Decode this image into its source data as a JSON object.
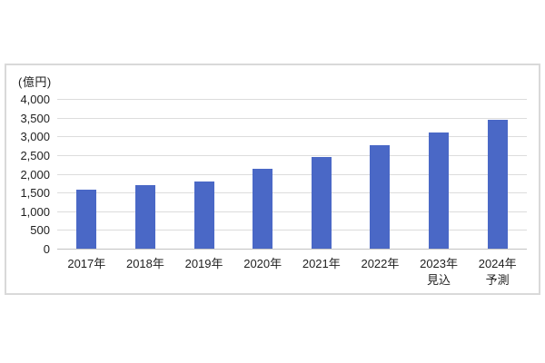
{
  "page": {
    "background_color": "#ffffff"
  },
  "chart_data": {
    "type": "bar",
    "title": "",
    "unit_label": "(億円)",
    "categories": [
      "2017年",
      "2018年",
      "2019年",
      "2020年",
      "2021年",
      "2022年",
      "2023年",
      "2024年"
    ],
    "category_sublabels": [
      "",
      "",
      "",
      "",
      "",
      "",
      "見込",
      "予測"
    ],
    "values": [
      1580,
      1700,
      1800,
      2130,
      2440,
      2760,
      3110,
      3450
    ],
    "xlabel": "",
    "ylabel": "(億円)",
    "ylim": [
      0,
      4000
    ],
    "y_tick_interval": 500,
    "y_tick_labels": [
      "0",
      "500",
      "1,000",
      "1,500",
      "2,000",
      "2,500",
      "3,000",
      "3,500",
      "4,000"
    ],
    "grid": true,
    "legend_position": "none",
    "bar_color": "#4a68c6",
    "gridline_color": "#dcdcdc",
    "axis_line_color": "#c2c2c2",
    "text_color": "#1f1f1f",
    "chart_border_color": "#d9d9d9"
  }
}
